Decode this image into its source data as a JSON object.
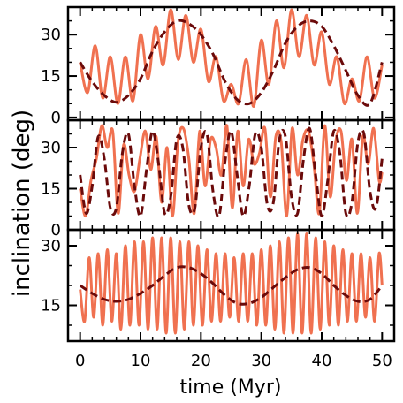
{
  "chart_data": {
    "type": "line",
    "xlabel": "time (Myr)",
    "ylabel": "inclination (deg)",
    "xlim": [
      -2,
      52
    ],
    "x_ticks": [
      0,
      10,
      20,
      30,
      40,
      50
    ],
    "grid": false,
    "legend": "none",
    "colors": {
      "full": "#f07150",
      "secular": "#6b0a0a"
    },
    "panels": [
      {
        "ylim": [
          -1,
          40
        ],
        "y_ticks": [
          0,
          15,
          30
        ],
        "series": [
          {
            "style": "solid",
            "x": [
              0,
              1.25,
              2.5,
              3.75,
              5,
              6.25,
              7.5,
              8.75,
              10,
              11.25,
              12.5,
              13.75,
              15,
              16.25,
              17.5,
              18.75,
              20,
              21.25,
              22.5,
              23.75,
              25,
              26.25,
              27.5,
              28.75,
              30,
              31.25,
              32.5,
              33.75,
              35,
              36.25,
              37.5,
              38.75,
              40,
              41.25,
              42.5,
              43.75,
              45,
              46.25,
              47.5,
              48.75,
              50
            ],
            "y": [
              20,
              9,
              26,
              7,
              22,
              5,
              22,
              6,
              30,
              14,
              33,
              19,
              39,
              21,
              37,
              20,
              32,
              13,
              22,
              6,
              12,
              5,
              21,
              4,
              28,
              12,
              35,
              18,
              39,
              22,
              37,
              19,
              31,
              12,
              22,
              5,
              14,
              6,
              22,
              7,
              19
            ]
          },
          {
            "style": "dashed",
            "x": [
              0,
              2,
              4,
              6,
              8,
              10,
              12,
              14,
              16,
              18,
              20,
              22,
              24,
              26,
              28,
              30,
              32,
              34,
              36,
              38,
              40,
              42,
              44,
              46,
              48,
              50
            ],
            "y": [
              20,
              13,
              8,
              5.5,
              8,
              14,
              24,
              31,
              35,
              34,
              30,
              23,
              13,
              6.5,
              5,
              9,
              17,
              27,
              33,
              35,
              33,
              26,
              17,
              8,
              5,
              20
            ]
          }
        ]
      },
      {
        "ylim": [
          0,
          40
        ],
        "y_ticks": [
          0,
          15,
          30
        ],
        "series": [
          {
            "style": "solid",
            "x": [
              0,
              0.9,
              1.8,
              2.7,
              3.6,
              4.5,
              5.4,
              6.3,
              7.2,
              8.1,
              9,
              9.9,
              10.8,
              11.7,
              12.6,
              13.5,
              14.4,
              15.3,
              16.2,
              17.1,
              18,
              18.9,
              19.8,
              20.7,
              21.6,
              22.5,
              23.4,
              24.3,
              25.2,
              26.1,
              27,
              27.9,
              28.8,
              29.7,
              30.6,
              31.5,
              32.4,
              33.3,
              34.2,
              35.1,
              36,
              36.9,
              37.8,
              38.7,
              39.6,
              40.5,
              41.4,
              42.3,
              43.2,
              44.1,
              45,
              45.9,
              46.8,
              47.7,
              48.6,
              49.5,
              50
            ],
            "y": [
              15,
              5,
              18,
              26,
              38,
              30,
              36,
              6,
              31,
              20,
              14,
              26,
              36,
              22,
              34,
              10,
              30,
              5,
              32,
              37,
              26,
              6,
              36,
              16,
              33,
              30,
              20,
              38,
              8,
              36,
              16,
              33,
              24,
              28,
              37,
              12,
              34,
              32,
              5,
              37,
              20,
              33,
              36,
              24,
              6,
              38,
              12,
              32,
              36,
              18,
              33,
              6,
              34,
              24,
              37,
              18,
              21
            ]
          },
          {
            "style": "dashed",
            "x": [
              0,
              1,
              2,
              3,
              4,
              5,
              6,
              7,
              8,
              9,
              10,
              11,
              12,
              13,
              14,
              15,
              16,
              17,
              18,
              19,
              20,
              21,
              22,
              23,
              24,
              25,
              26,
              27,
              28,
              29,
              30,
              31,
              32,
              33,
              34,
              35,
              36,
              37,
              38,
              39,
              40,
              41,
              42,
              43,
              44,
              45,
              46,
              47,
              48,
              49,
              50
            ],
            "y": [
              20,
              6,
              16,
              34,
              26,
              8,
              8,
              28,
              35,
              16,
              5,
              22,
              36,
              24,
              6,
              12,
              33,
              30,
              9,
              8,
              30,
              35,
              14,
              5,
              25,
              36,
              20,
              5,
              16,
              35,
              30,
              9,
              10,
              33,
              34,
              12,
              6,
              26,
              37,
              20,
              5,
              18,
              36,
              28,
              6,
              10,
              32,
              35,
              14,
              8,
              26
            ]
          }
        ]
      },
      {
        "ylim": [
          6,
          34
        ],
        "y_ticks": [
          15,
          30
        ],
        "series": [
          {
            "style": "solid",
            "x": [
              0,
              0.75,
              1.5,
              2.25,
              3,
              3.75,
              4.5,
              5.25,
              6,
              6.75,
              7.5,
              8.25,
              9,
              9.75,
              10.5,
              11.25,
              12,
              12.75,
              13.5,
              14.25,
              15,
              15.75,
              16.5,
              17.25,
              18,
              18.75,
              19.5,
              20.25,
              21,
              21.75,
              22.5,
              23.25,
              24,
              24.75,
              25.5,
              26.25,
              27,
              27.75,
              28.5,
              29.25,
              30,
              30.75,
              31.5,
              32.25,
              33,
              33.75,
              34.5,
              35.25,
              36,
              36.75,
              37.5,
              38.25,
              39,
              39.75,
              40.5,
              41.25,
              42,
              42.75,
              43.5,
              44.25,
              45,
              45.75,
              46.5,
              47.25,
              48,
              48.75,
              49.5,
              50
            ],
            "y": [
              19,
              11,
              27,
              12,
              28,
              10,
              29,
              11,
              28,
              9,
              30,
              10,
              31,
              10,
              31,
              9,
              32,
              9,
              32,
              8,
              32,
              8,
              31,
              9,
              31,
              10,
              30,
              10,
              29,
              11,
              28,
              11,
              28,
              12,
              27,
              11,
              28,
              11,
              28,
              10,
              29,
              10,
              30,
              9,
              31,
              8,
              32,
              8,
              33,
              8,
              33,
              8,
              32,
              9,
              31,
              10,
              30,
              10,
              29,
              11,
              28,
              11,
              28,
              12,
              27,
              11,
              28,
              20
            ]
          },
          {
            "style": "dashed",
            "x": [
              0,
              2,
              4,
              6,
              8,
              10,
              12,
              14,
              16,
              18,
              20,
              22,
              24,
              26,
              28,
              30,
              32,
              34,
              36,
              38,
              40,
              42,
              44,
              46,
              48,
              50
            ],
            "y": [
              20,
              18,
              16.5,
              16,
              16.5,
              18,
              20,
              22.5,
              24.5,
              24.5,
              23,
              20.5,
              17.5,
              15.5,
              15.5,
              17,
              19.5,
              22,
              24,
              24.5,
              23,
              20,
              17.5,
              16,
              16.5,
              20
            ]
          }
        ]
      }
    ]
  }
}
